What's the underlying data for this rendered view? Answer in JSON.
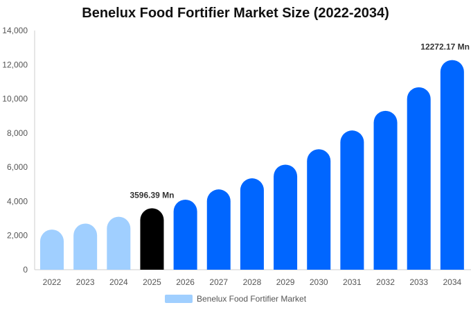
{
  "chart_data": {
    "type": "bar",
    "title": "Benelux Food Fortifier Market Size (2022-2034)",
    "categories": [
      "2022",
      "2023",
      "2024",
      "2025",
      "2026",
      "2027",
      "2028",
      "2029",
      "2030",
      "2031",
      "2032",
      "2033",
      "2034"
    ],
    "series": [
      {
        "name": "Benelux Food Fortifier Market",
        "values": [
          2350,
          2700,
          3100,
          3596.39,
          4100,
          4700,
          5350,
          6150,
          7050,
          8150,
          9300,
          10680,
          12272.17
        ]
      }
    ],
    "ylim": [
      0,
      14000
    ],
    "yticks": [
      "0",
      "2,000",
      "4,000",
      "6,000",
      "8,000",
      "10,000",
      "12,000",
      "14,000"
    ],
    "grid": false,
    "legend_position": "bottom",
    "annotations": [
      {
        "category": "2025",
        "text": "3596.39 Mn"
      },
      {
        "category": "2034",
        "text": "12272.17 Mn"
      }
    ],
    "colors": {
      "historic": "#a0cfff",
      "base_year": "#000000",
      "forecast": "#0066ff",
      "legend_swatch": "#a0cfff"
    },
    "bar_color_groups": [
      "historic",
      "historic",
      "historic",
      "base_year",
      "forecast",
      "forecast",
      "forecast",
      "forecast",
      "forecast",
      "forecast",
      "forecast",
      "forecast",
      "forecast"
    ]
  }
}
